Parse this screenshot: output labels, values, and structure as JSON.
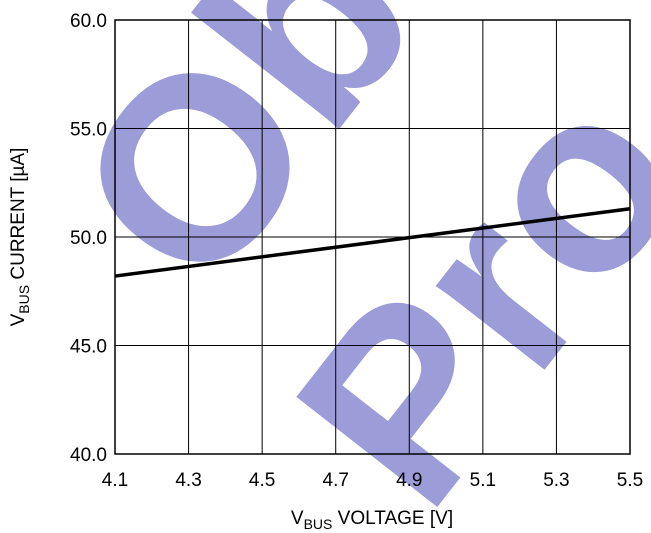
{
  "chart_data": {
    "type": "line",
    "watermark": [
      "Ob",
      "Pro"
    ],
    "watermark_color": "#9c9cd8",
    "x_label": {
      "main": "V",
      "sub": "BUS",
      "rest": " VOLTAGE [V]"
    },
    "y_label": {
      "main": "V",
      "sub": "BUS",
      "rest": " CURRENT [µA]"
    },
    "x": [
      4.1,
      5.5
    ],
    "series": [
      {
        "color": "#000000",
        "values": [
          48.2,
          51.3
        ]
      }
    ],
    "xlim": [
      4.1,
      5.5
    ],
    "xticks": [
      4.1,
      4.3,
      4.5,
      4.7,
      4.9,
      5.1,
      5.3,
      5.5
    ],
    "ylim": [
      40,
      60
    ],
    "yticks": [
      {
        "value": 40,
        "label": "40.0"
      },
      {
        "value": 45,
        "label": "45.0"
      },
      {
        "value": 50,
        "label": "50.0"
      },
      {
        "value": 55,
        "label": "55.0"
      },
      {
        "value": 60,
        "label": "60.0"
      }
    ],
    "grid": true
  }
}
